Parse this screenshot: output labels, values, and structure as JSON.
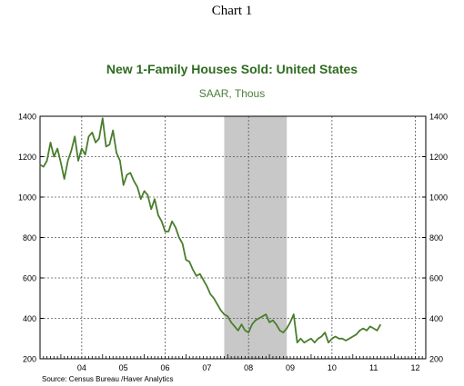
{
  "page": {
    "heading": "Chart 1",
    "source": "Source:  Census Bureau /Haver Analytics"
  },
  "colors": {
    "title": "#2e6b1f",
    "subtitle": "#4a7d3a",
    "line": "#4a7d2c",
    "recession": "#c8c8c8",
    "grid": "#555555"
  },
  "chart_data": {
    "type": "line",
    "title": "New 1-Family Houses Sold: United States",
    "subtitle": "SAAR, Thous",
    "ylim": [
      200,
      1400
    ],
    "yticks": [
      200,
      400,
      600,
      800,
      1000,
      1200,
      1400
    ],
    "xlim": [
      2003.5,
      2012.75
    ],
    "x_tick_labels": [
      "04",
      "05",
      "06",
      "07",
      "08",
      "09",
      "10",
      "11",
      "12"
    ],
    "grid": "dashed",
    "shaded_periods": [
      [
        2007.917,
        2009.417
      ]
    ],
    "series": [
      {
        "name": "",
        "x_start": 2003.5,
        "step": 0.08333,
        "values": [
          1160,
          1150,
          1180,
          1270,
          1200,
          1240,
          1170,
          1090,
          1180,
          1230,
          1300,
          1180,
          1240,
          1210,
          1300,
          1320,
          1270,
          1290,
          1390,
          1250,
          1260,
          1330,
          1220,
          1180,
          1060,
          1110,
          1120,
          1080,
          1050,
          990,
          1030,
          1010,
          940,
          990,
          910,
          880,
          830,
          830,
          880,
          850,
          800,
          770,
          690,
          680,
          640,
          610,
          620,
          590,
          560,
          520,
          500,
          470,
          440,
          420,
          410,
          380,
          360,
          340,
          370,
          340,
          330,
          370,
          390,
          400,
          410,
          420,
          380,
          390,
          370,
          340,
          330,
          350,
          380,
          420,
          280,
          300,
          280,
          290,
          300,
          280,
          300,
          310,
          330,
          280,
          300,
          310,
          300,
          300,
          290,
          300,
          310,
          320,
          340,
          350,
          340,
          360,
          350,
          340,
          370
        ]
      }
    ]
  }
}
